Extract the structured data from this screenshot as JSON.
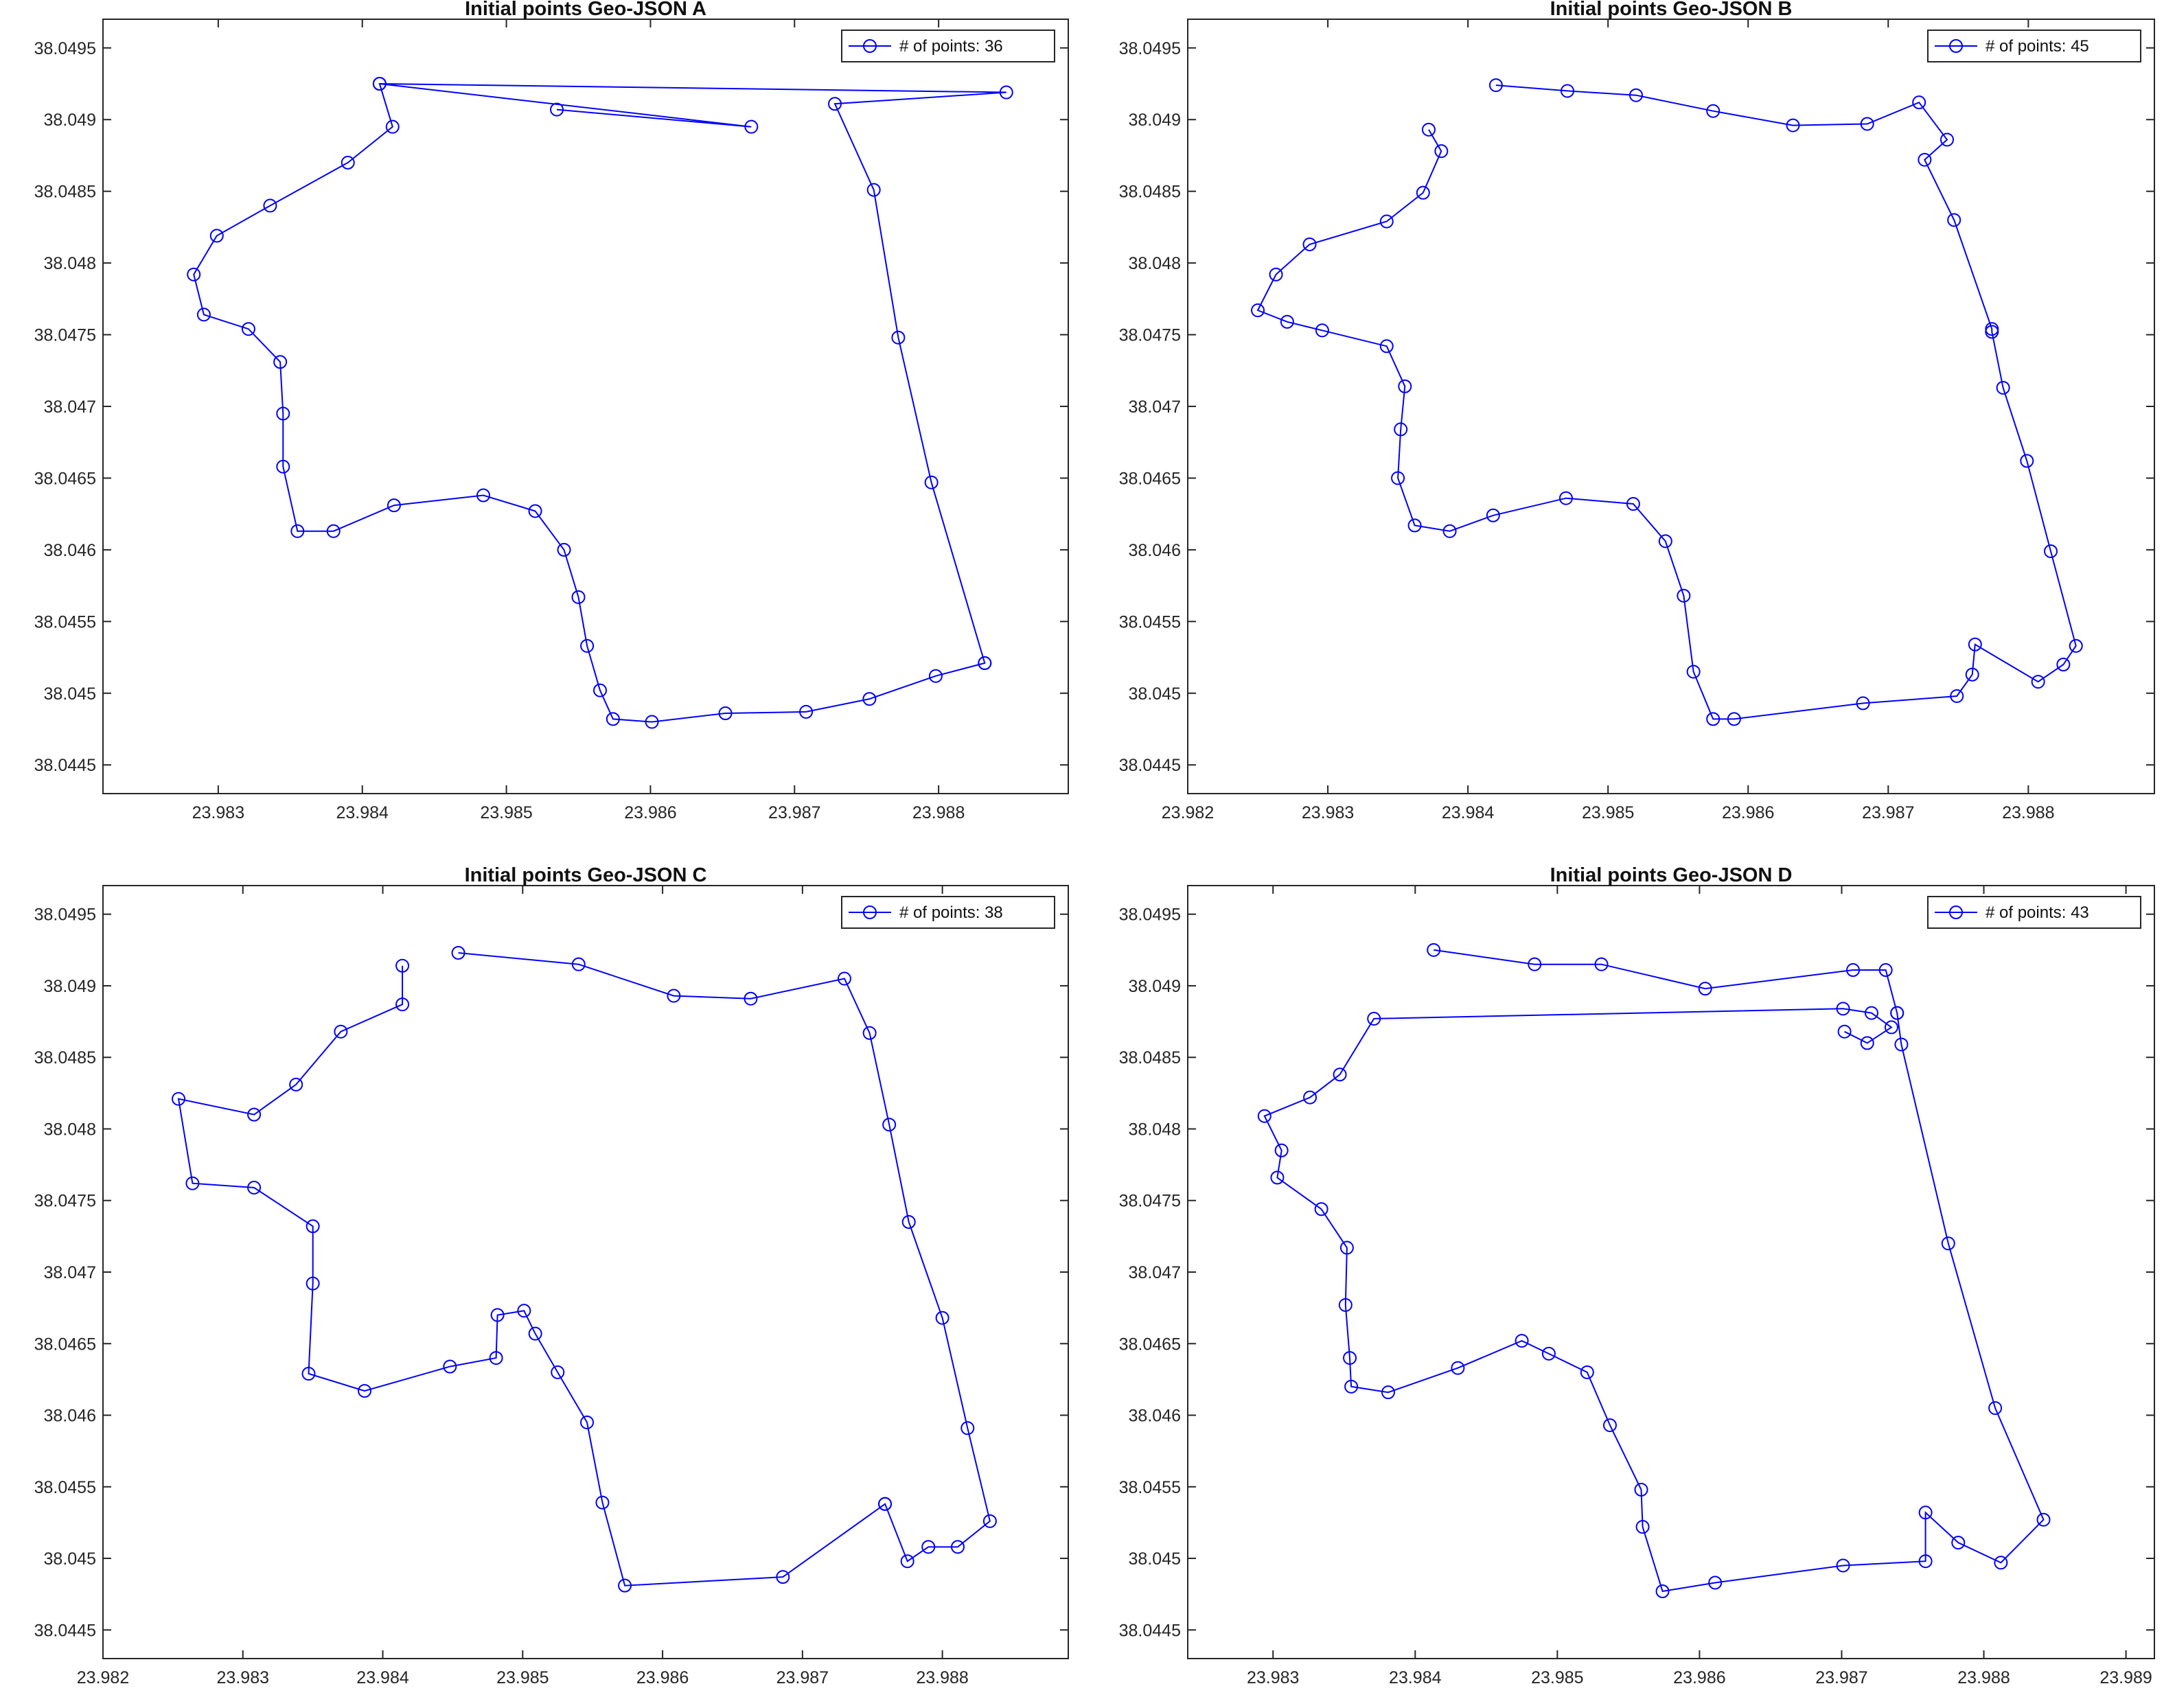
{
  "chart_data": [
    {
      "type": "line",
      "title": "Initial points Geo-JSON A",
      "xlim": [
        23.9822,
        23.9889
      ],
      "ylim": [
        38.0443,
        38.0497
      ],
      "xticks": [
        "23.983",
        "23.984",
        "23.985",
        "23.986",
        "23.987",
        "23.988"
      ],
      "yticks": [
        "38.0445",
        "38.045",
        "38.0455",
        "38.046",
        "38.0465",
        "38.047",
        "38.0475",
        "38.048",
        "38.0485",
        "38.049",
        "38.0495"
      ],
      "legend_position": "top-right",
      "series": [
        {
          "name": "# of points: 36",
          "color": "#0000ff",
          "x": [
            23.98412,
            23.98847,
            23.98728,
            23.98755,
            23.98772,
            23.98795,
            23.98832,
            23.98832,
            23.98798,
            23.98752,
            23.98708,
            23.98652,
            23.98601,
            23.98574,
            23.98565,
            23.98556,
            23.9855,
            23.9854,
            23.9852,
            23.98484,
            23.98422,
            23.9838,
            23.98355,
            23.98345,
            23.98345,
            23.98343,
            23.98321,
            23.9829,
            23.98283,
            23.98299,
            23.98336,
            23.9839,
            23.98421,
            23.98412,
            23.9867,
            23.98535
          ],
          "y": [
            38.04925,
            38.04919,
            38.04911,
            38.04851,
            38.04748,
            38.04647,
            38.04521,
            38.04521,
            38.04512,
            38.04496,
            38.04487,
            38.04486,
            38.0448,
            38.04482,
            38.04502,
            38.04533,
            38.04567,
            38.046,
            38.04627,
            38.04638,
            38.04631,
            38.04613,
            38.04613,
            38.04658,
            38.04695,
            38.04731,
            38.04754,
            38.04764,
            38.04792,
            38.04819,
            38.0484,
            38.0487,
            38.04895,
            38.04925,
            38.04895,
            38.04907
          ]
        }
      ]
    },
    {
      "type": "line",
      "title": "Initial points Geo-JSON B",
      "xlim": [
        23.982,
        23.9889
      ],
      "ylim": [
        38.0443,
        38.0497
      ],
      "xticks": [
        "23.982",
        "23.983",
        "23.984",
        "23.985",
        "23.986",
        "23.987",
        "23.988"
      ],
      "yticks": [
        "38.0445",
        "38.045",
        "38.0455",
        "38.046",
        "38.0465",
        "38.047",
        "38.0475",
        "38.048",
        "38.0485",
        "38.049",
        "38.0495"
      ],
      "legend_position": "top-right",
      "series": [
        {
          "name": "# of points: 45",
          "color": "#0000ff",
          "x": [
            23.9842,
            23.98471,
            23.9852,
            23.98575,
            23.98632,
            23.98685,
            23.98722,
            23.98742,
            23.98726,
            23.98747,
            23.98774,
            23.98774,
            23.98782,
            23.98799,
            23.98816,
            23.98834,
            23.98825,
            23.98807,
            23.98762,
            23.9876,
            23.98749,
            23.98682,
            23.9859,
            23.98575,
            23.98561,
            23.98554,
            23.98541,
            23.98518,
            23.9847,
            23.98418,
            23.98387,
            23.98362,
            23.9835,
            23.98352,
            23.98355,
            23.98342,
            23.98296,
            23.98271,
            23.9825,
            23.98263,
            23.98287,
            23.98342,
            23.98368,
            23.98381,
            23.98372
          ],
          "y": [
            38.04924,
            38.0492,
            38.04917,
            38.04906,
            38.04896,
            38.04897,
            38.04912,
            38.04886,
            38.04872,
            38.0483,
            38.04754,
            38.04752,
            38.04713,
            38.04662,
            38.04599,
            38.04533,
            38.0452,
            38.04508,
            38.04534,
            38.04513,
            38.04498,
            38.04493,
            38.04482,
            38.04482,
            38.04515,
            38.04568,
            38.04606,
            38.04632,
            38.04636,
            38.04624,
            38.04613,
            38.04617,
            38.0465,
            38.04684,
            38.04714,
            38.04742,
            38.04753,
            38.04759,
            38.04767,
            38.04792,
            38.04813,
            38.04829,
            38.04849,
            38.04878,
            38.04893
          ]
        }
      ]
    },
    {
      "type": "line",
      "title": "Initial points Geo-JSON C",
      "xlim": [
        23.982,
        23.9889
      ],
      "ylim": [
        38.0443,
        38.0497
      ],
      "xticks": [
        "23.982",
        "23.983",
        "23.984",
        "23.985",
        "23.986",
        "23.987",
        "23.988"
      ],
      "yticks": [
        "38.0445",
        "38.045",
        "38.0455",
        "38.046",
        "38.0465",
        "38.047",
        "38.0475",
        "38.048",
        "38.0485",
        "38.049",
        "38.0495"
      ],
      "legend_position": "top-right",
      "series": [
        {
          "name": "# of points: 38",
          "color": "#0000ff",
          "x": [
            23.98454,
            23.9854,
            23.98608,
            23.98663,
            23.9873,
            23.98748,
            23.98762,
            23.98776,
            23.988,
            23.98818,
            23.98834,
            23.98811,
            23.9879,
            23.98775,
            23.98759,
            23.98759,
            23.98686,
            23.98573,
            23.98557,
            23.98546,
            23.98525,
            23.98509,
            23.98501,
            23.98482,
            23.98481,
            23.98448,
            23.98387,
            23.98347,
            23.9835,
            23.9835,
            23.98308,
            23.98264,
            23.98254,
            23.98308,
            23.98338,
            23.9837,
            23.98414,
            23.98414
          ],
          "y": [
            38.04923,
            38.04915,
            38.04893,
            38.04891,
            38.04905,
            38.04867,
            38.04803,
            38.04735,
            38.04668,
            38.04591,
            38.04526,
            38.04508,
            38.04508,
            38.04498,
            38.04538,
            38.04538,
            38.04487,
            38.04481,
            38.04539,
            38.04595,
            38.0463,
            38.04657,
            38.04673,
            38.0467,
            38.0464,
            38.04634,
            38.04617,
            38.04629,
            38.04692,
            38.04732,
            38.04759,
            38.04762,
            38.04821,
            38.0481,
            38.04831,
            38.04868,
            38.04887,
            38.04914
          ]
        }
      ]
    },
    {
      "type": "line",
      "title": "Initial points Geo-JSON D",
      "xlim": [
        23.9824,
        23.9892
      ],
      "ylim": [
        38.0443,
        38.0497
      ],
      "xticks": [
        "23.983",
        "23.984",
        "23.985",
        "23.986",
        "23.987",
        "23.988",
        "23.989"
      ],
      "yticks": [
        "38.0445",
        "38.045",
        "38.0455",
        "38.046",
        "38.0465",
        "38.047",
        "38.0475",
        "38.048",
        "38.0485",
        "38.049",
        "38.0495"
      ],
      "legend_position": "top-right",
      "series": [
        {
          "name": "# of points: 43",
          "color": "#0000ff",
          "x": [
            23.98413,
            23.98484,
            23.98531,
            23.98604,
            23.98708,
            23.98731,
            23.98739,
            23.98739,
            23.98742,
            23.98775,
            23.98808,
            23.98842,
            23.98812,
            23.98782,
            23.98759,
            23.98759,
            23.98701,
            23.98611,
            23.98574,
            23.9856,
            23.98559,
            23.98537,
            23.98521,
            23.98494,
            23.98475,
            23.9843,
            23.98381,
            23.98355,
            23.98354,
            23.98351,
            23.98352,
            23.98334,
            23.98303,
            23.98306,
            23.98294,
            23.98326,
            23.98347,
            23.98371,
            23.98701,
            23.98721,
            23.98735,
            23.98718,
            23.98702
          ],
          "y": [
            38.04925,
            38.04915,
            38.04915,
            38.04898,
            38.04911,
            38.04911,
            38.04881,
            38.04881,
            38.04859,
            38.0472,
            38.04605,
            38.04527,
            38.04497,
            38.04511,
            38.04532,
            38.04498,
            38.04495,
            38.04483,
            38.04477,
            38.04522,
            38.04548,
            38.04593,
            38.0463,
            38.04643,
            38.04652,
            38.04633,
            38.04616,
            38.0462,
            38.0464,
            38.04677,
            38.04717,
            38.04744,
            38.04766,
            38.04785,
            38.04809,
            38.04822,
            38.04838,
            38.04877,
            38.04884,
            38.04881,
            38.04871,
            38.0486,
            38.04868
          ]
        }
      ]
    }
  ]
}
